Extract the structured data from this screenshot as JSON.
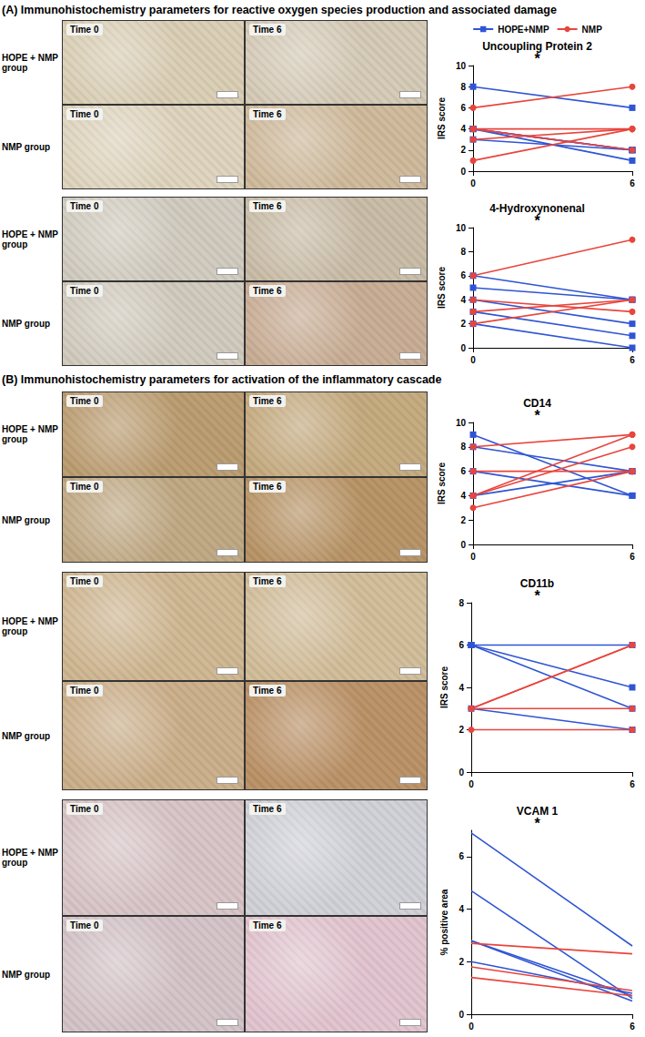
{
  "sections": [
    {
      "title": "(A) Immunohistochemistry parameters for reactive oxygen species production and associated damage"
    },
    {
      "title": "(B) Immunohistochemistry parameters for activation of the inflammatory cascade"
    }
  ],
  "image_panels": {
    "row_labels": [
      "HOPE + NMP group",
      "NMP group"
    ],
    "time_labels": [
      "Time 0",
      "Time 6"
    ]
  },
  "chart_data": [
    {
      "type": "line",
      "title": "Uncoupling Protein 2",
      "ylabel": "IRS score",
      "annotation": "*",
      "legend": "top",
      "grid": false,
      "x": [
        0,
        6
      ],
      "xlim": [
        0,
        6
      ],
      "xticks": [
        0,
        6
      ],
      "ylim": [
        0,
        10
      ],
      "yticks": [
        0,
        2,
        4,
        6,
        8,
        10
      ],
      "series": [
        {
          "name": "HOPE+NMP",
          "color": "#2f55d4",
          "marker": "square",
          "values": [
            [
              8,
              6
            ],
            [
              4,
              2
            ],
            [
              4,
              1
            ],
            [
              3,
              2
            ],
            [
              4,
              2
            ]
          ]
        },
        {
          "name": "NMP",
          "color": "#e8453c",
          "marker": "circle",
          "values": [
            [
              6,
              8
            ],
            [
              4,
              4
            ],
            [
              1,
              4
            ],
            [
              4,
              2
            ],
            [
              3,
              4
            ]
          ]
        }
      ]
    },
    {
      "type": "line",
      "title": "4-Hydroxynonenal",
      "ylabel": "IRS score",
      "annotation": "*",
      "grid": false,
      "x": [
        0,
        6
      ],
      "xlim": [
        0,
        6
      ],
      "xticks": [
        0,
        6
      ],
      "ylim": [
        0,
        10
      ],
      "yticks": [
        0,
        2,
        4,
        6,
        8,
        10
      ],
      "series": [
        {
          "name": "HOPE+NMP",
          "color": "#2f55d4",
          "marker": "square",
          "values": [
            [
              6,
              4
            ],
            [
              5,
              4
            ],
            [
              4,
              2
            ],
            [
              3,
              1
            ],
            [
              2,
              0
            ]
          ]
        },
        {
          "name": "NMP",
          "color": "#e8453c",
          "marker": "circle",
          "values": [
            [
              6,
              9
            ],
            [
              2,
              4
            ],
            [
              4,
              3
            ],
            [
              3,
              4
            ]
          ]
        }
      ]
    },
    {
      "type": "line",
      "title": "CD14",
      "ylabel": "IRS score",
      "annotation": "*",
      "grid": false,
      "x": [
        0,
        6
      ],
      "xlim": [
        0,
        6
      ],
      "xticks": [
        0,
        6
      ],
      "ylim": [
        0,
        10
      ],
      "yticks": [
        0,
        2,
        4,
        6,
        8,
        10
      ],
      "series": [
        {
          "name": "HOPE+NMP",
          "color": "#2f55d4",
          "marker": "square",
          "values": [
            [
              9,
              4
            ],
            [
              8,
              6
            ],
            [
              6,
              4
            ],
            [
              4,
              6
            ]
          ]
        },
        {
          "name": "NMP",
          "color": "#e8453c",
          "marker": "circle",
          "values": [
            [
              8,
              9
            ],
            [
              4,
              8
            ],
            [
              3,
              6
            ],
            [
              6,
              6
            ],
            [
              4,
              9
            ]
          ]
        }
      ]
    },
    {
      "type": "line",
      "title": "CD11b",
      "ylabel": "IRS score",
      "annotation": "*",
      "grid": false,
      "x": [
        0,
        6
      ],
      "xlim": [
        0,
        6
      ],
      "xticks": [
        0,
        6
      ],
      "ylim": [
        0,
        8
      ],
      "yticks": [
        0,
        2,
        4,
        6,
        8
      ],
      "series": [
        {
          "name": "HOPE+NMP",
          "color": "#2f55d4",
          "marker": "square",
          "values": [
            [
              6,
              4
            ],
            [
              6,
              3
            ],
            [
              6,
              6
            ],
            [
              3,
              2
            ]
          ]
        },
        {
          "name": "NMP",
          "color": "#e8453c",
          "marker": "circle",
          "values": [
            [
              3,
              6
            ],
            [
              2,
              2
            ],
            [
              3,
              3
            ],
            [
              3,
              6
            ]
          ]
        }
      ]
    },
    {
      "type": "line",
      "title": "VCAM 1",
      "ylabel": "% positive area",
      "annotation": "*",
      "grid": false,
      "x": [
        0,
        6
      ],
      "xlim": [
        0,
        6
      ],
      "xticks": [
        0,
        6
      ],
      "ylim": [
        0,
        7
      ],
      "yticks": [
        0,
        2,
        4,
        6
      ],
      "series": [
        {
          "name": "HOPE+NMP",
          "color": "#2f55d4",
          "marker": "none",
          "values": [
            [
              6.9,
              2.6
            ],
            [
              4.7,
              0.6
            ],
            [
              2.8,
              0.7
            ],
            [
              2.8,
              0.5
            ],
            [
              2.0,
              0.8
            ]
          ]
        },
        {
          "name": "NMP",
          "color": "#e8453c",
          "marker": "none",
          "values": [
            [
              2.7,
              2.3
            ],
            [
              1.8,
              0.9
            ],
            [
              1.4,
              0.7
            ]
          ]
        }
      ]
    }
  ]
}
